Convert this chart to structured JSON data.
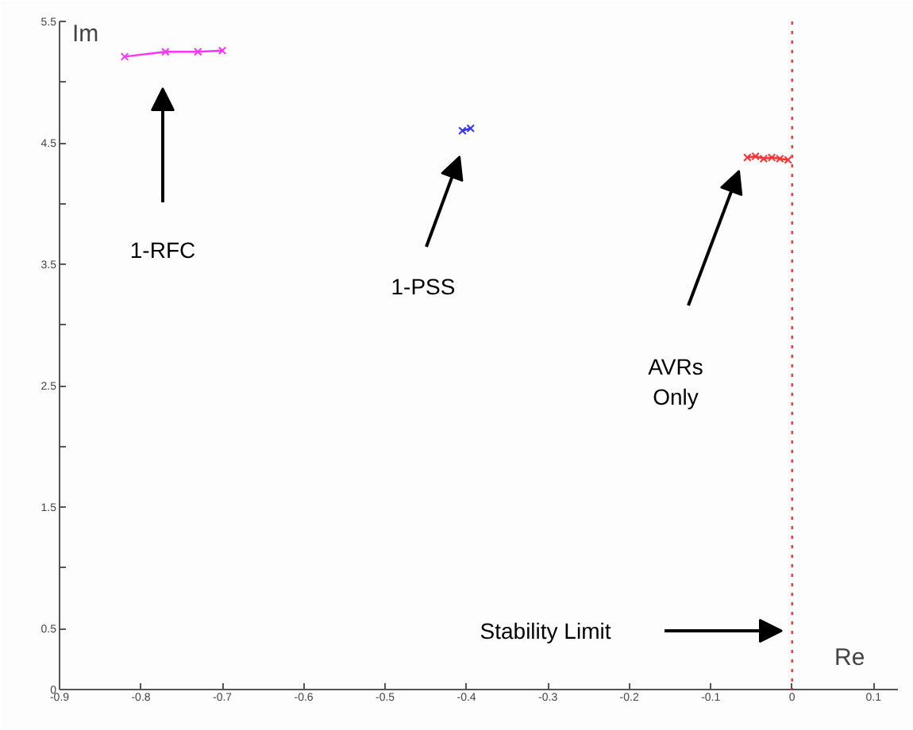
{
  "chart_data": {
    "type": "line",
    "xlabel": "Re",
    "ylabel": "Im",
    "series": [
      {
        "color": "#ff33ff",
        "x": [
          -0.82,
          -0.77,
          -0.73,
          -0.7
        ],
        "values": [
          5.21,
          5.25,
          5.25,
          5.26
        ]
      },
      {
        "color": "#3333ff",
        "x": [
          -0.405,
          -0.395
        ],
        "values": [
          4.6,
          4.62
        ]
      },
      {
        "color": "#ff3333",
        "x": [
          -0.055,
          -0.045,
          -0.035,
          -0.025,
          -0.015,
          -0.005
        ],
        "values": [
          4.38,
          4.39,
          4.37,
          4.38,
          4.37,
          4.36
        ]
      }
    ],
    "marker": "cross",
    "line_style": "solid",
    "grid": false,
    "xlim": [
      -0.9,
      0.13
    ],
    "ylim": [
      0,
      5.5
    ],
    "xticks": [
      -0.9,
      -0.8,
      -0.7,
      -0.6,
      -0.5,
      -0.4,
      -0.3,
      -0.2,
      -0.1,
      0,
      0.1
    ],
    "yticks": [
      0,
      0.5,
      {
        "value": 1,
        "label": null
      },
      1.5,
      {
        "value": 2,
        "label": null
      },
      2.5,
      {
        "value": 3,
        "label": null
      },
      3.5,
      {
        "value": 4,
        "label": null
      },
      4.5,
      {
        "value": 5,
        "label": null
      },
      5.5
    ],
    "ref_lines": [
      {
        "axis": "x",
        "value": 0,
        "color": "#ff3333",
        "line_style": "dotted"
      }
    ],
    "annotations": [
      "1-RFC",
      "1-PSS",
      "AVRs\nOnly",
      "Stability Limit"
    ]
  }
}
